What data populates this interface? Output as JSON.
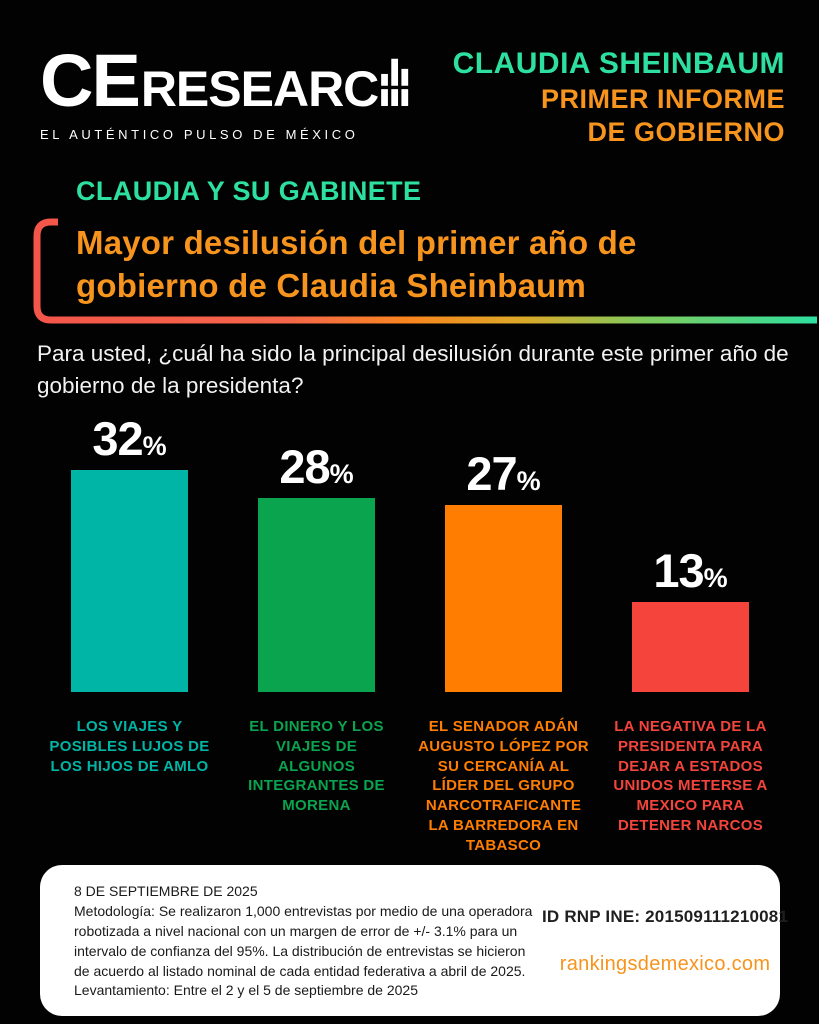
{
  "brand": {
    "logo_ce": "CE",
    "logo_research": "RESEARC",
    "logo_bars_icon": "bar-chart-H-glyph",
    "tagline": "EL AUTÉNTICO PULSO DE MÉXICO"
  },
  "masthead": {
    "title": "CLAUDIA SHEINBAUM",
    "subtitle_line1": "PRIMER INFORME",
    "subtitle_line2": "DE GOBIERNO"
  },
  "section": {
    "kicker": "CLAUDIA Y SU GABINETE",
    "headline": "Mayor desilusión del primer año de gobierno de Claudia Sheinbaum",
    "question": "Para usted, ¿cuál ha sido la principal desilusión durante este primer año de gobierno de la presidenta?"
  },
  "chart_data": {
    "type": "bar",
    "title": "Mayor desilusión del primer año de gobierno de Claudia Sheinbaum",
    "xlabel": "",
    "ylabel": "",
    "unit": "%",
    "grid": false,
    "ylim": [
      0,
      35
    ],
    "value_labels_position": "above bars",
    "categories": [
      "LOS VIAJES Y POSIBLES LUJOS DE LOS HIJOS DE AMLO",
      "EL DINERO Y LOS VIAJES DE ALGUNOS INTEGRANTES DE MORENA",
      "EL SENADOR ADÁN AUGUSTO LÓPEZ POR SU CERCANÍA AL LÍDER DEL GRUPO NARCOTRAFICANTE LA BARREDORA EN TABASCO",
      "LA NEGATIVA DE LA PRESIDENTA PARA DEJAR A ESTADOS UNIDOS METERSE A MEXICO PARA DETENER NARCOS"
    ],
    "values": [
      32,
      28,
      27,
      13
    ],
    "bar_colors": [
      "#00B5A5",
      "#0AA44E",
      "#FF7D00",
      "#F4443C"
    ],
    "value_label_color": "#FFFFFF"
  },
  "footer": {
    "date": "8 DE SEPTIEMBRE DE 2025",
    "methodology": "Metodología: Se realizaron 1,000 entrevistas por medio de una operadora robotizada a nivel nacional con un margen de error de +/- 3.1% para un intervalo de confianza del 95%. La distribución de entrevistas se hicieron de acuerdo al listado nominal de cada entidad federativa a abril de 2025.",
    "fieldwork": "Levantamiento: Entre el 2 y el 5 de septiembre de 2025",
    "id_rnp": "ID RNP INE: 201509111210081",
    "website": "rankingsdemexico.com"
  },
  "colors": {
    "background": "#020202",
    "mint": "#2EE0A0",
    "orange": "#F7941D",
    "accent_red": "#F4564A",
    "card_bg": "#FFFFFF",
    "question_text": "#F2F2F2"
  }
}
